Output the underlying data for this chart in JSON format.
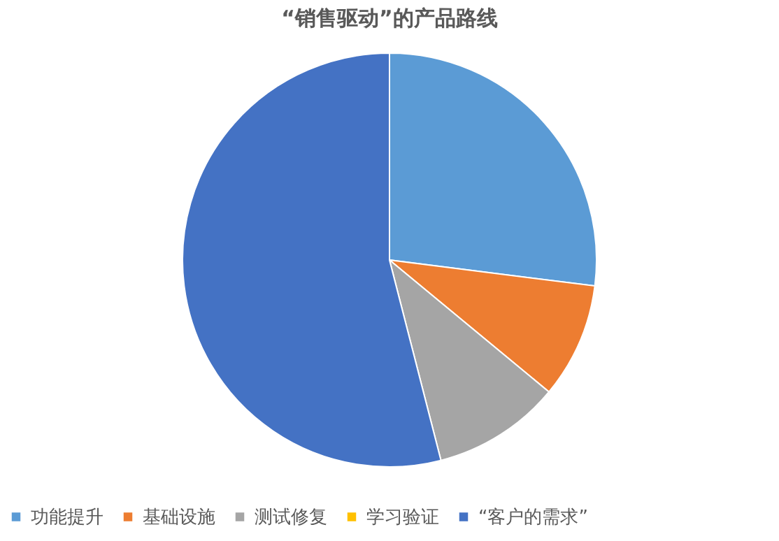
{
  "chart_data": {
    "type": "pie",
    "title": "“销售驱动”的产品路线",
    "categories": [
      "功能提升",
      "基础设施",
      "测试修复",
      "学习验证",
      "“客户的需求”"
    ],
    "values": [
      27,
      9,
      10,
      0,
      54
    ],
    "colors": [
      "#5b9bd5",
      "#ed7d31",
      "#a5a5a5",
      "#ffc000",
      "#4472c4"
    ],
    "legend": "bottom"
  }
}
